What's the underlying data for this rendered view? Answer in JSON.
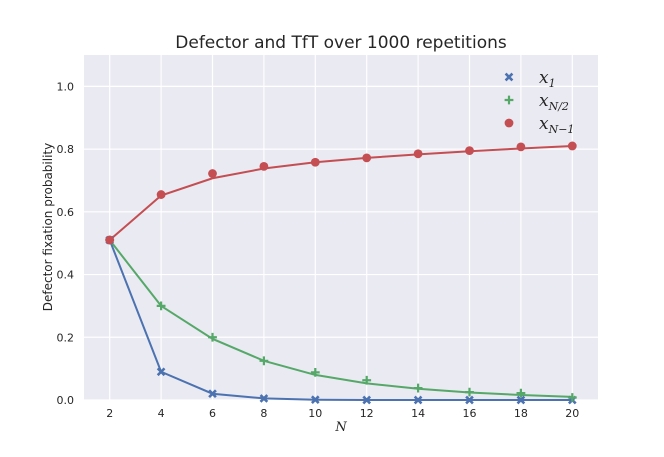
{
  "chart_data": {
    "type": "line",
    "title": "Defector and TfT over 1000 repetitions",
    "xlabel": "N",
    "ylabel": "Defector fixation probability",
    "xlim": [
      1,
      21
    ],
    "ylim": [
      0.0,
      1.1
    ],
    "xticks": [
      "2",
      "4",
      "6",
      "8",
      "10",
      "12",
      "14",
      "16",
      "18",
      "20"
    ],
    "yticks": [
      "0.0",
      "0.2",
      "0.4",
      "0.6",
      "0.8",
      "1.0"
    ],
    "grid": true,
    "legend_position": "top-right",
    "x": [
      2,
      4,
      6,
      8,
      10,
      12,
      14,
      16,
      18,
      20
    ],
    "series": [
      {
        "name": "x_1",
        "legend_base": "x",
        "legend_sub": "1",
        "color": "#4c72b0",
        "marker": "x-icon",
        "points": [
          0.51,
          0.09,
          0.02,
          0.005,
          0.001,
          0.0,
          0.0,
          0.0,
          0.0,
          0.0
        ],
        "curve": [
          0.51,
          0.09,
          0.02,
          0.005,
          0.001,
          0.0,
          0.0,
          0.0,
          0.0,
          0.0
        ]
      },
      {
        "name": "x_{N/2}",
        "legend_base": "x",
        "legend_sub": "N/2",
        "color": "#55a868",
        "marker": "plus-icon",
        "points": [
          0.51,
          0.3,
          0.2,
          0.125,
          0.088,
          0.063,
          0.038,
          0.025,
          0.022,
          0.008
        ],
        "curve": [
          0.51,
          0.3,
          0.195,
          0.125,
          0.08,
          0.053,
          0.036,
          0.024,
          0.016,
          0.01
        ]
      },
      {
        "name": "x_{N-1}",
        "legend_base": "x",
        "legend_sub": "N−1",
        "color": "#c44e52",
        "marker": "circle-icon",
        "points": [
          0.51,
          0.655,
          0.722,
          0.745,
          0.758,
          0.772,
          0.785,
          0.795,
          0.807,
          0.81
        ],
        "curve": [
          0.51,
          0.652,
          0.707,
          0.738,
          0.758,
          0.772,
          0.783,
          0.793,
          0.802,
          0.81
        ]
      }
    ]
  }
}
